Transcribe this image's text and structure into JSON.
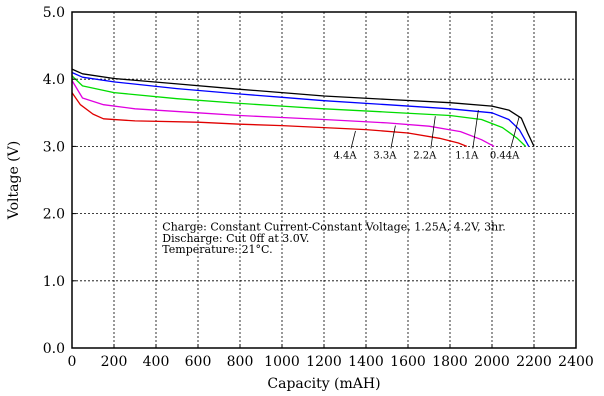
{
  "chart_data": {
    "type": "line",
    "title": "",
    "xlabel": "Capacity (mAH)",
    "ylabel": "Voltage (V)",
    "xlim": [
      0,
      2400
    ],
    "ylim": [
      0,
      5
    ],
    "x_ticks": [
      0,
      200,
      400,
      600,
      800,
      1000,
      1200,
      1400,
      1600,
      1800,
      2000,
      2200,
      2400
    ],
    "x_tick_labels": [
      "0",
      "200",
      "400",
      "600",
      "800",
      "1000",
      "1200",
      "1400",
      "1600",
      "1800",
      "2000",
      "2200",
      "2400"
    ],
    "y_ticks": [
      0,
      1,
      2,
      3,
      4,
      5
    ],
    "y_tick_labels": [
      "0.0",
      "1.0",
      "2.0",
      "3.0",
      "4.0",
      "5.0"
    ],
    "grid": true,
    "series": [
      {
        "name": "0.44A",
        "color": "#000000",
        "points": [
          [
            0,
            4.15
          ],
          [
            50,
            4.08
          ],
          [
            200,
            4.01
          ],
          [
            500,
            3.93
          ],
          [
            800,
            3.85
          ],
          [
            1000,
            3.8
          ],
          [
            1200,
            3.75
          ],
          [
            1500,
            3.7
          ],
          [
            1800,
            3.65
          ],
          [
            2000,
            3.6
          ],
          [
            2080,
            3.54
          ],
          [
            2140,
            3.42
          ],
          [
            2170,
            3.2
          ],
          [
            2200,
            3.0
          ]
        ]
      },
      {
        "name": "1.1A",
        "color": "#0000ff",
        "points": [
          [
            0,
            4.1
          ],
          [
            50,
            4.03
          ],
          [
            200,
            3.96
          ],
          [
            500,
            3.86
          ],
          [
            800,
            3.78
          ],
          [
            1000,
            3.73
          ],
          [
            1200,
            3.68
          ],
          [
            1500,
            3.62
          ],
          [
            1800,
            3.56
          ],
          [
            2000,
            3.5
          ],
          [
            2080,
            3.4
          ],
          [
            2130,
            3.25
          ],
          [
            2175,
            3.0
          ]
        ]
      },
      {
        "name": "2.2A",
        "color": "#00dd00",
        "points": [
          [
            0,
            4.05
          ],
          [
            50,
            3.9
          ],
          [
            200,
            3.8
          ],
          [
            500,
            3.71
          ],
          [
            800,
            3.64
          ],
          [
            1000,
            3.6
          ],
          [
            1200,
            3.56
          ],
          [
            1500,
            3.51
          ],
          [
            1800,
            3.46
          ],
          [
            1950,
            3.4
          ],
          [
            2050,
            3.28
          ],
          [
            2120,
            3.12
          ],
          [
            2160,
            3.0
          ]
        ]
      },
      {
        "name": "3.3A",
        "color": "#e000e0",
        "points": [
          [
            0,
            3.98
          ],
          [
            50,
            3.72
          ],
          [
            150,
            3.62
          ],
          [
            300,
            3.56
          ],
          [
            600,
            3.5
          ],
          [
            800,
            3.46
          ],
          [
            1000,
            3.43
          ],
          [
            1200,
            3.4
          ],
          [
            1500,
            3.35
          ],
          [
            1700,
            3.3
          ],
          [
            1850,
            3.22
          ],
          [
            1950,
            3.1
          ],
          [
            2010,
            3.0
          ]
        ]
      },
      {
        "name": "4.4A",
        "color": "#e00000",
        "points": [
          [
            0,
            3.8
          ],
          [
            40,
            3.62
          ],
          [
            100,
            3.48
          ],
          [
            150,
            3.41
          ],
          [
            300,
            3.38
          ],
          [
            600,
            3.36
          ],
          [
            800,
            3.33
          ],
          [
            1000,
            3.31
          ],
          [
            1200,
            3.28
          ],
          [
            1400,
            3.25
          ],
          [
            1600,
            3.2
          ],
          [
            1750,
            3.12
          ],
          [
            1840,
            3.05
          ],
          [
            1880,
            3.0
          ]
        ]
      }
    ],
    "curve_labels": [
      {
        "text": "4.4A",
        "x": 1300,
        "y": 2.82,
        "pointer_to": [
          1350,
          3.23
        ]
      },
      {
        "text": "3.3A",
        "x": 1490,
        "y": 2.82,
        "pointer_to": [
          1540,
          3.31
        ]
      },
      {
        "text": "2.2A",
        "x": 1680,
        "y": 2.82,
        "pointer_to": [
          1730,
          3.45
        ]
      },
      {
        "text": "1.1A",
        "x": 1880,
        "y": 2.82,
        "pointer_to": [
          1935,
          3.54
        ]
      },
      {
        "text": "0.44A",
        "x": 2060,
        "y": 2.82,
        "pointer_to": [
          2130,
          3.45
        ]
      }
    ],
    "annotations": [
      {
        "text": "Charge: Constant Current-Constant Voltage, 1.25A, 4.2V, 3hr.",
        "x": 430,
        "y": 1.75
      },
      {
        "text": "Discharge: Cut 0ff at 3.0V.",
        "x": 430,
        "y": 1.58
      },
      {
        "text": "Temperature: 21°C.",
        "x": 430,
        "y": 1.41
      }
    ]
  }
}
